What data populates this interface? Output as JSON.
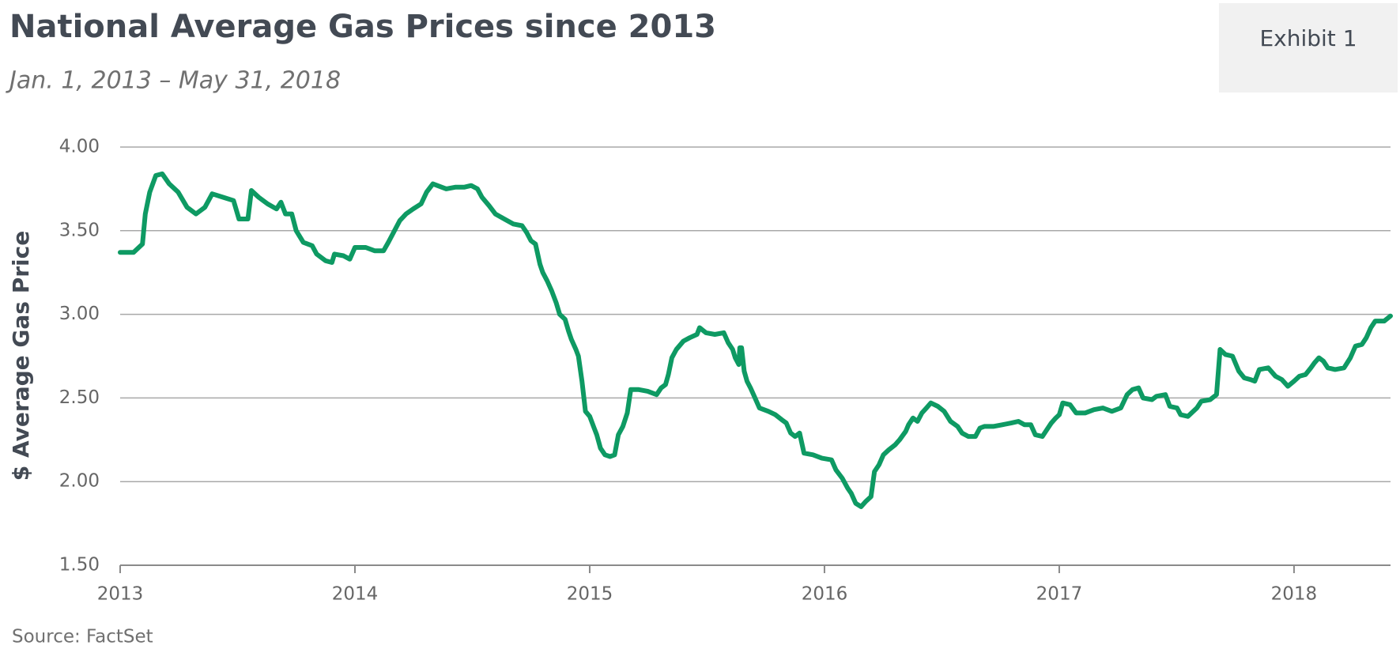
{
  "chart_data": {
    "type": "line",
    "title": "National Average Gas Prices since 2013",
    "subtitle": "Jan. 1, 2013 – May 31, 2018",
    "badge": "Exhibit 1",
    "y_label": "$ Average Gas Price",
    "source": "Source: FactSet",
    "color": "#0e9a63",
    "grid": true,
    "xlim": [
      2013,
      2018.411
    ],
    "xticks": [
      2013,
      2014,
      2015,
      2016,
      2017,
      2018
    ],
    "ylim": [
      1.5,
      4.0
    ],
    "yticks": [
      {
        "value": 1.5,
        "label": "1.50"
      },
      {
        "value": 2,
        "label": "2.00"
      },
      {
        "value": 2.5,
        "label": "2.50"
      },
      {
        "value": 3,
        "label": "3.00"
      },
      {
        "value": 3.5,
        "label": "3.50"
      },
      {
        "value": 4,
        "label": "4.00"
      }
    ],
    "x": [
      2013.0,
      2013.057,
      2013.095,
      2013.107,
      2013.126,
      2013.152,
      2013.179,
      2013.209,
      2013.247,
      2013.285,
      2013.323,
      2013.361,
      2013.392,
      2013.438,
      2013.483,
      2013.506,
      2013.544,
      2013.559,
      2013.59,
      2013.628,
      2013.666,
      2013.685,
      2013.704,
      2013.731,
      2013.75,
      2013.78,
      2013.818,
      2013.837,
      2013.875,
      2013.902,
      2013.913,
      2013.951,
      2013.978,
      2014.0,
      2014.046,
      2014.084,
      2014.122,
      2014.142,
      2014.161,
      2014.191,
      2014.218,
      2014.248,
      2014.282,
      2014.305,
      2014.332,
      2014.351,
      2014.389,
      2014.427,
      2014.465,
      2014.495,
      2014.522,
      2014.541,
      2014.571,
      2014.598,
      2014.636,
      2014.674,
      2014.712,
      2014.731,
      2014.75,
      2014.769,
      2014.788,
      2014.8,
      2014.819,
      2014.838,
      2014.857,
      2014.872,
      2014.895,
      2014.91,
      2014.922,
      2014.941,
      2014.952,
      2014.967,
      2014.982,
      2015.0,
      2015.019,
      2015.03,
      2015.046,
      2015.065,
      2015.087,
      2015.106,
      2015.122,
      2015.141,
      2015.16,
      2015.175,
      2015.209,
      2015.247,
      2015.285,
      2015.304,
      2015.323,
      2015.335,
      2015.35,
      2015.369,
      2015.399,
      2015.426,
      2015.457,
      2015.468,
      2015.495,
      2015.533,
      2015.571,
      2015.59,
      2015.609,
      2015.62,
      2015.635,
      2015.639,
      2015.647,
      2015.658,
      2015.67,
      2015.685,
      2015.704,
      2015.723,
      2015.761,
      2015.791,
      2015.818,
      2015.837,
      2015.856,
      2015.875,
      2015.894,
      2015.913,
      2015.951,
      2015.989,
      2016.03,
      2016.049,
      2016.076,
      2016.099,
      2016.114,
      2016.133,
      2016.156,
      2016.175,
      2016.198,
      2016.213,
      2016.232,
      2016.251,
      2016.274,
      2016.301,
      2016.32,
      2016.346,
      2016.358,
      2016.377,
      2016.396,
      2016.415,
      2016.434,
      2016.453,
      2016.483,
      2016.51,
      2016.537,
      2016.567,
      2016.586,
      2016.613,
      2016.643,
      2016.662,
      2016.681,
      2016.719,
      2016.757,
      2016.795,
      2016.826,
      2016.852,
      2016.879,
      2016.898,
      2016.928,
      2016.947,
      2016.966,
      2016.985,
      2017.0,
      2017.015,
      2017.046,
      2017.072,
      2017.11,
      2017.148,
      2017.186,
      2017.224,
      2017.262,
      2017.289,
      2017.312,
      2017.338,
      2017.357,
      2017.395,
      2017.414,
      2017.452,
      2017.471,
      2017.502,
      2017.517,
      2017.548,
      2017.586,
      2017.605,
      2017.643,
      2017.67,
      2017.685,
      2017.708,
      2017.738,
      2017.765,
      2017.788,
      2017.814,
      2017.833,
      2017.852,
      2017.89,
      2017.921,
      2017.948,
      2017.974,
      2018.0,
      2018.023,
      2018.049,
      2018.072,
      2018.087,
      2018.106,
      2018.125,
      2018.144,
      2018.175,
      2018.213,
      2018.24,
      2018.262,
      2018.289,
      2018.308,
      2018.327,
      2018.346,
      2018.384,
      2018.411
    ],
    "values": [
      3.37,
      3.37,
      3.42,
      3.6,
      3.73,
      3.83,
      3.84,
      3.78,
      3.73,
      3.64,
      3.6,
      3.64,
      3.72,
      3.7,
      3.68,
      3.57,
      3.57,
      3.74,
      3.7,
      3.66,
      3.63,
      3.67,
      3.6,
      3.6,
      3.5,
      3.43,
      3.41,
      3.36,
      3.32,
      3.31,
      3.36,
      3.35,
      3.33,
      3.4,
      3.4,
      3.38,
      3.38,
      3.43,
      3.48,
      3.56,
      3.6,
      3.63,
      3.66,
      3.73,
      3.78,
      3.77,
      3.75,
      3.76,
      3.76,
      3.77,
      3.75,
      3.7,
      3.65,
      3.6,
      3.57,
      3.54,
      3.53,
      3.49,
      3.44,
      3.42,
      3.3,
      3.25,
      3.2,
      3.14,
      3.07,
      3.0,
      2.97,
      2.9,
      2.85,
      2.79,
      2.75,
      2.6,
      2.42,
      2.39,
      2.32,
      2.28,
      2.2,
      2.16,
      2.15,
      2.16,
      2.28,
      2.33,
      2.41,
      2.55,
      2.55,
      2.54,
      2.52,
      2.56,
      2.58,
      2.64,
      2.74,
      2.79,
      2.84,
      2.86,
      2.88,
      2.92,
      2.89,
      2.88,
      2.89,
      2.83,
      2.79,
      2.74,
      2.7,
      2.8,
      2.8,
      2.66,
      2.6,
      2.56,
      2.5,
      2.44,
      2.42,
      2.4,
      2.37,
      2.35,
      2.29,
      2.27,
      2.29,
      2.17,
      2.16,
      2.14,
      2.13,
      2.07,
      2.02,
      1.96,
      1.93,
      1.87,
      1.85,
      1.88,
      1.91,
      2.06,
      2.1,
      2.16,
      2.19,
      2.22,
      2.25,
      2.3,
      2.34,
      2.38,
      2.36,
      2.41,
      2.44,
      2.47,
      2.45,
      2.42,
      2.36,
      2.33,
      2.29,
      2.27,
      2.27,
      2.32,
      2.33,
      2.33,
      2.34,
      2.35,
      2.36,
      2.34,
      2.34,
      2.28,
      2.27,
      2.31,
      2.35,
      2.38,
      2.4,
      2.47,
      2.46,
      2.41,
      2.41,
      2.43,
      2.44,
      2.42,
      2.44,
      2.52,
      2.55,
      2.56,
      2.5,
      2.49,
      2.51,
      2.52,
      2.45,
      2.44,
      2.4,
      2.39,
      2.44,
      2.48,
      2.49,
      2.52,
      2.79,
      2.76,
      2.75,
      2.66,
      2.62,
      2.61,
      2.6,
      2.67,
      2.68,
      2.63,
      2.61,
      2.57,
      2.6,
      2.63,
      2.64,
      2.68,
      2.71,
      2.74,
      2.72,
      2.68,
      2.67,
      2.68,
      2.74,
      2.81,
      2.82,
      2.86,
      2.92,
      2.96,
      2.96,
      2.99
    ]
  }
}
